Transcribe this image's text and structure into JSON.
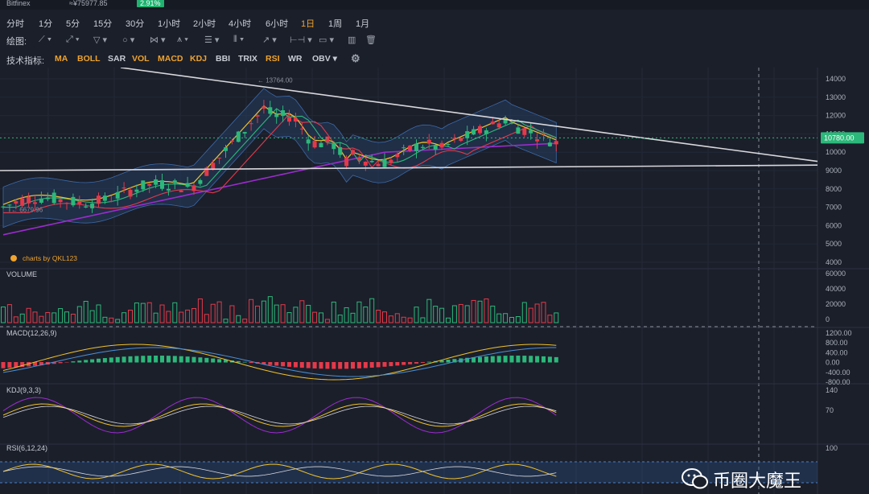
{
  "header": {
    "exchange": "Bitfinex",
    "price_cny": "≈¥75977.85",
    "change_pct": "2.91%"
  },
  "intervals": [
    {
      "label": "分时",
      "active": false
    },
    {
      "label": "1分",
      "active": false
    },
    {
      "label": "5分",
      "active": false
    },
    {
      "label": "15分",
      "active": false
    },
    {
      "label": "30分",
      "active": false
    },
    {
      "label": "1小时",
      "active": false
    },
    {
      "label": "2小时",
      "active": false
    },
    {
      "label": "4小时",
      "active": false
    },
    {
      "label": "6小时",
      "active": false
    },
    {
      "label": "1日",
      "active": true
    },
    {
      "label": "1周",
      "active": false
    },
    {
      "label": "1月",
      "active": false
    }
  ],
  "drawing_toolbar": {
    "label": "绘图:",
    "tools": [
      "line-tool-icon",
      "ray-tool-icon",
      "channel-tool-icon",
      "circle-tool-icon",
      "pattern-tool-icon",
      "pitchfork-tool-icon",
      "fib-tool-icon",
      "gann-tool-icon",
      "arrow-tool-icon",
      "range-tool-icon",
      "comment-tool-icon",
      "measure-icon",
      "trash-icon"
    ]
  },
  "indicator_toolbar": {
    "label": "技术指标:",
    "items": [
      {
        "label": "MA",
        "active": true
      },
      {
        "label": "BOLL",
        "active": true
      },
      {
        "label": "SAR",
        "active": false
      },
      {
        "label": "VOL",
        "active": true
      },
      {
        "label": "MACD",
        "active": true
      },
      {
        "label": "KDJ",
        "active": true
      },
      {
        "label": "BBI",
        "active": false
      },
      {
        "label": "TRIX",
        "active": false
      },
      {
        "label": "RSI",
        "active": true
      },
      {
        "label": "WR",
        "active": false
      },
      {
        "label": "OBV",
        "active": false
      }
    ]
  },
  "main_chart": {
    "y_ticks": [
      "14000",
      "13000",
      "12000",
      "11000",
      "10000",
      "9000",
      "8000",
      "7000",
      "6000",
      "5000",
      "4000"
    ],
    "price_tag": "10780.00",
    "high_label": "13764.00",
    "low_label": "6679.96",
    "brand": "charts by QKL123"
  },
  "panels": {
    "volume": {
      "title": "VOLUME",
      "ticks": [
        "60000",
        "40000",
        "20000",
        "0"
      ]
    },
    "macd": {
      "title": "MACD(12,26,9)",
      "ticks": [
        "1200.00",
        "800.00",
        "400.00",
        "0.00",
        "-400.00",
        "-800.00"
      ]
    },
    "kdj": {
      "title": "KDJ(9,3,3)",
      "ticks": [
        "140",
        "70"
      ]
    },
    "rsi": {
      "title": "RSI(6,12,24)",
      "ticks": [
        "100"
      ]
    }
  },
  "colors": {
    "up": "#2cb87a",
    "down": "#e5394a",
    "accent": "#f0a32c",
    "boll": "#4a7fc4",
    "ma_long": "#9b2ccf"
  },
  "watermark": {
    "text": "币圈大魔王"
  }
}
